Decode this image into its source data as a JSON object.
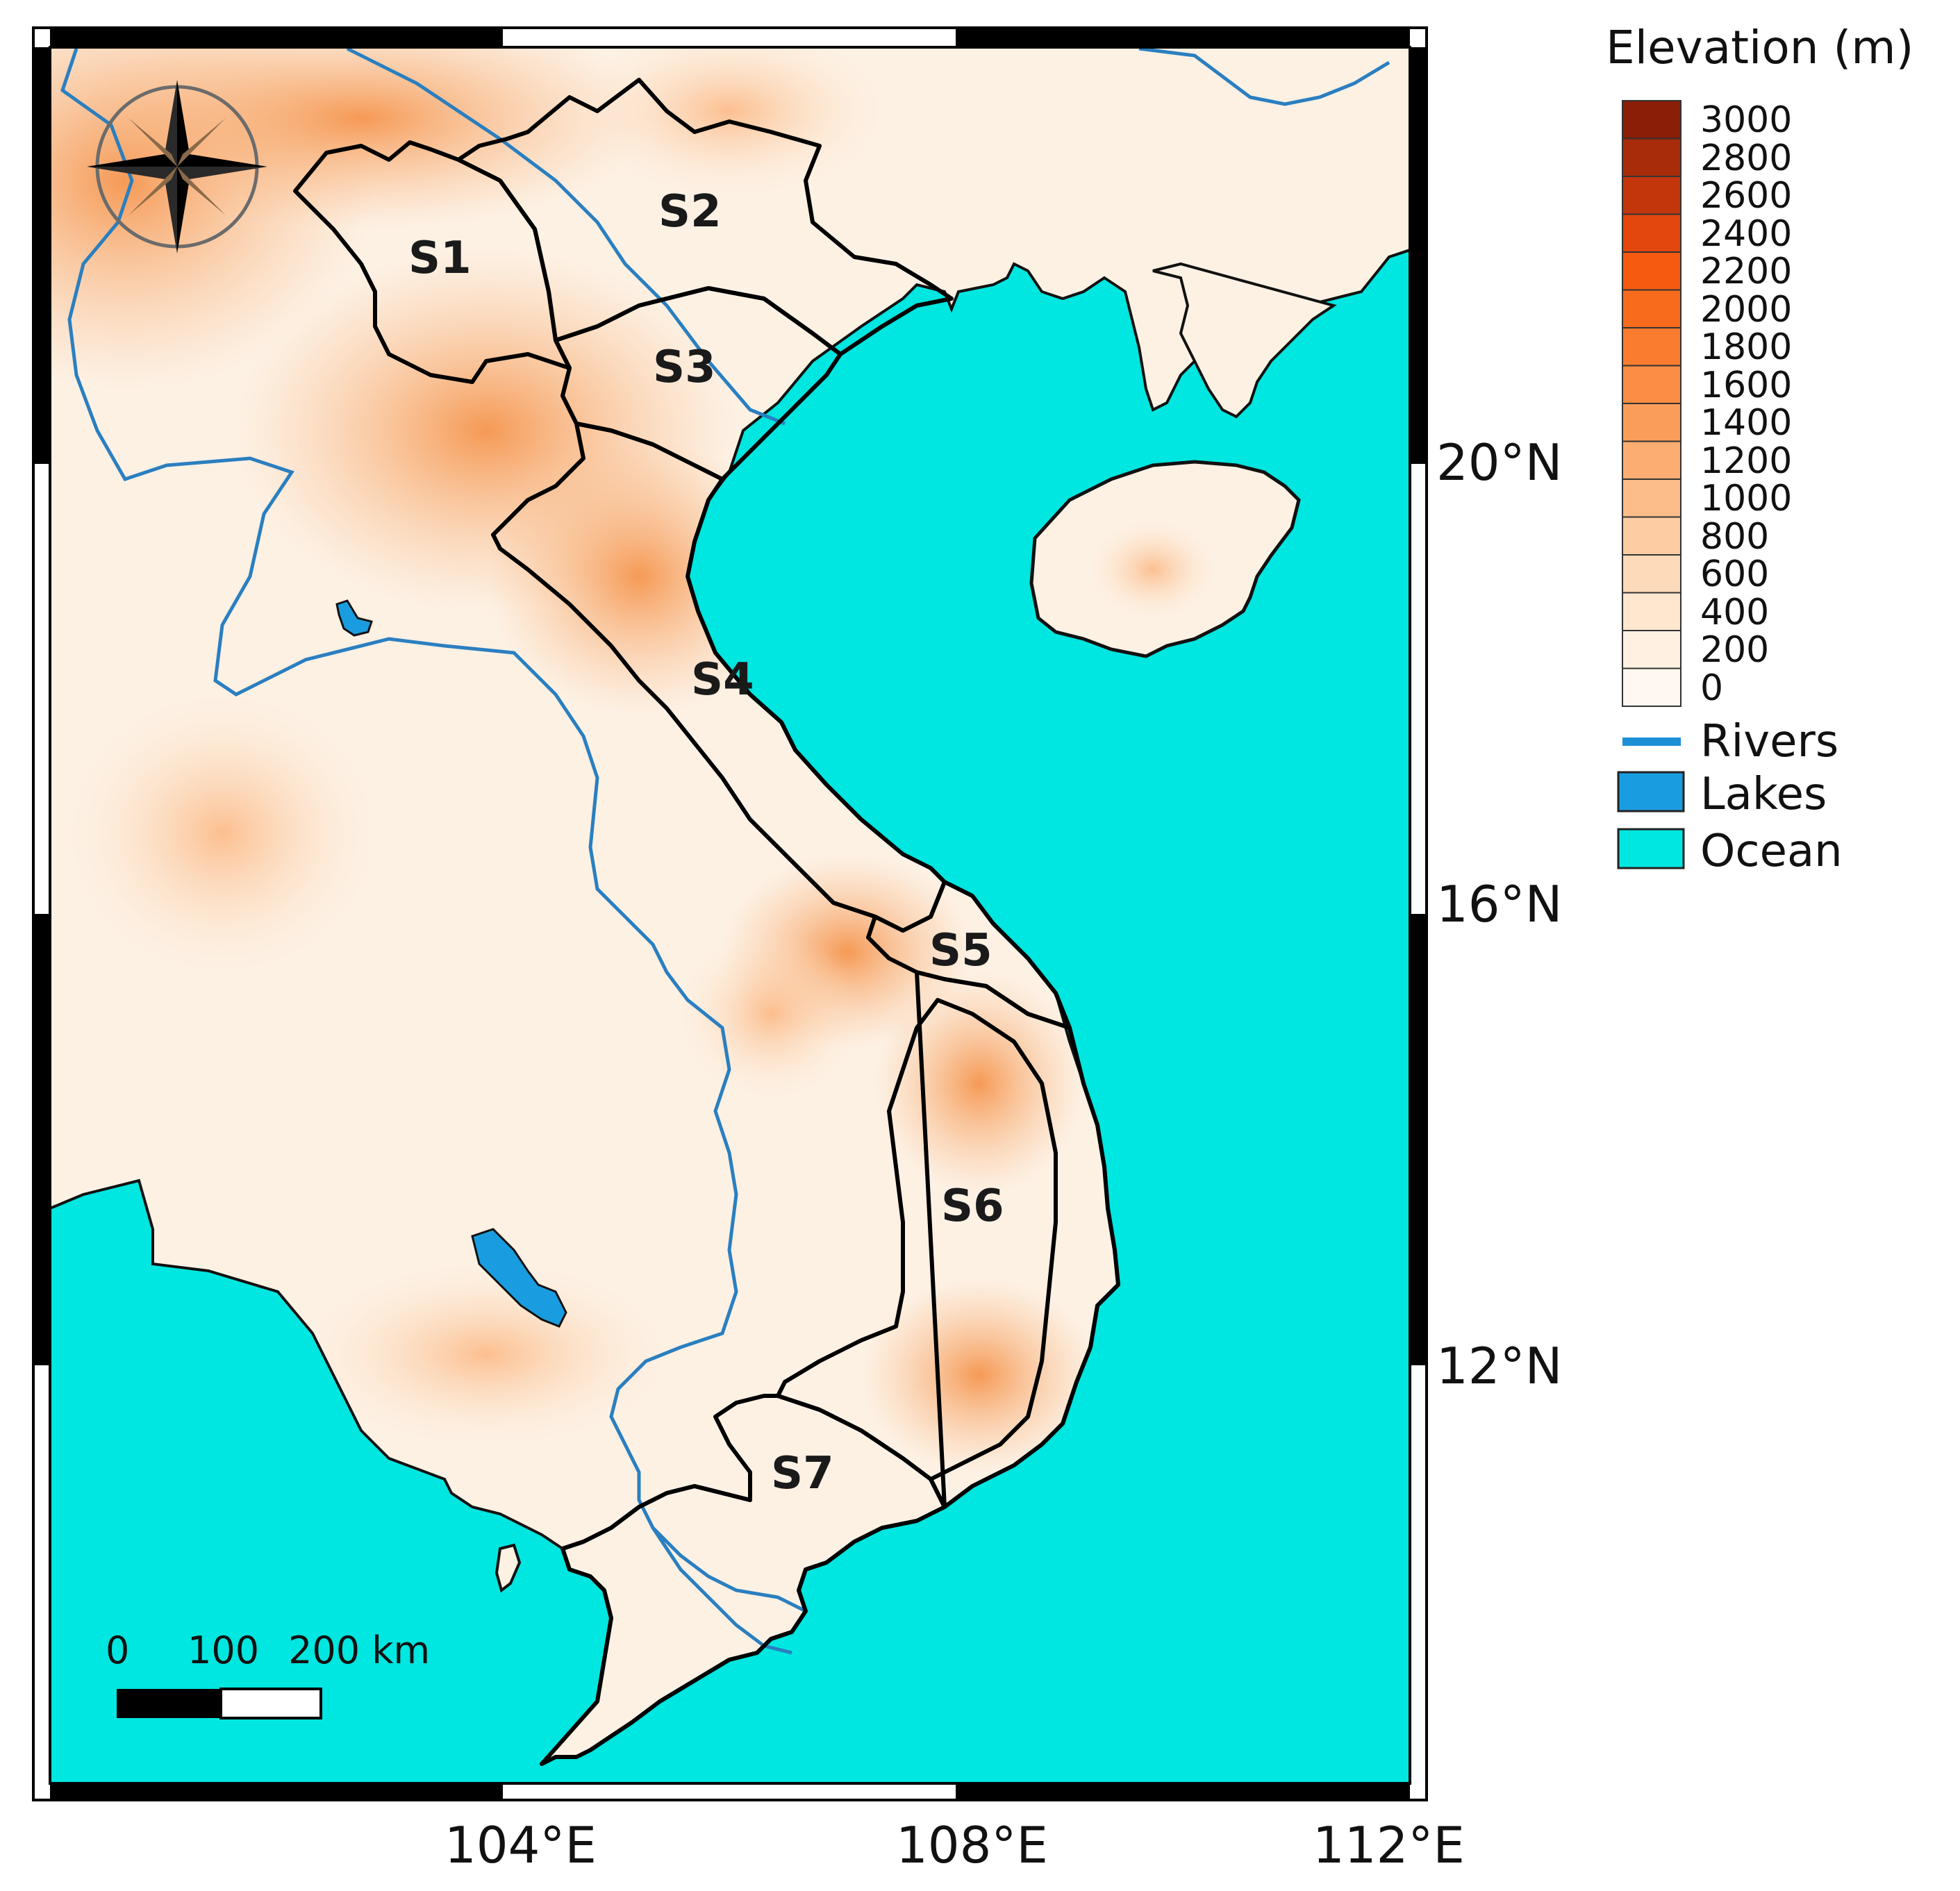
{
  "legend": {
    "title": "Elevation (m)",
    "colorbar": [
      {
        "value": "3000",
        "color": "#8a1e06"
      },
      {
        "value": "2800",
        "color": "#a82b0a"
      },
      {
        "value": "2600",
        "color": "#c3360c"
      },
      {
        "value": "2400",
        "color": "#e4470d"
      },
      {
        "value": "2200",
        "color": "#f55a10"
      },
      {
        "value": "2000",
        "color": "#f96b1c"
      },
      {
        "value": "1800",
        "color": "#fa7c2e"
      },
      {
        "value": "1600",
        "color": "#fb8d44"
      },
      {
        "value": "1400",
        "color": "#fb9d5a"
      },
      {
        "value": "1200",
        "color": "#fcad72"
      },
      {
        "value": "1000",
        "color": "#fcbd8a"
      },
      {
        "value": "800",
        "color": "#fdcca2"
      },
      {
        "value": "600",
        "color": "#fddab9"
      },
      {
        "value": "400",
        "color": "#fee6cf"
      },
      {
        "value": "200",
        "color": "#fff0e2"
      },
      {
        "value": "0",
        "color": "#fff8f0"
      }
    ],
    "features": [
      {
        "label": "Rivers",
        "color": "#1d8fd6"
      },
      {
        "label": "Lakes",
        "color": "#1a9de0"
      },
      {
        "label": "Ocean",
        "color": "#00e6e0"
      }
    ]
  },
  "axes": {
    "longitude_labels": [
      "104°E",
      "108°E",
      "112°E"
    ],
    "latitude_labels": [
      "20°N",
      "16°N",
      "12°N"
    ]
  },
  "regions": [
    "S1",
    "S2",
    "S3",
    "S4",
    "S5",
    "S6",
    "S7"
  ],
  "scale_bar": {
    "ticks": [
      "0",
      "100"
    ],
    "end_label": "200 km"
  },
  "colors": {
    "land": "#fdf0e3",
    "ocean": "#00e6e0",
    "river": "#2a7fc0",
    "lake": "#1a9de0",
    "boundary": "#000000"
  },
  "icons": {
    "compass": "north-arrow-compass-icon"
  }
}
